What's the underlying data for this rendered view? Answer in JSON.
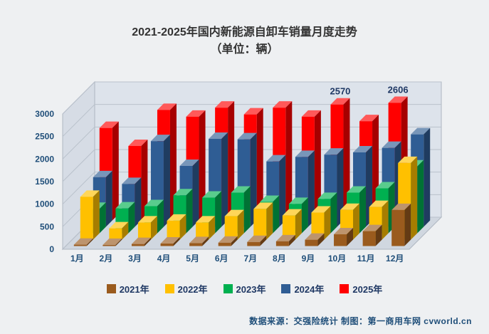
{
  "title": {
    "line1": "2021-2025年国内新能源自卸车销量月度走势",
    "line2": "（单位：辆）"
  },
  "source_note": "数据来源：交强险统计 制图：第一商用车网 cvworld.cn",
  "chart_data": {
    "type": "bar",
    "projection": "3d",
    "title": "2021-2025年国内新能源自卸车销量月度走势（单位：辆）",
    "unit": "辆",
    "categories": [
      "1月",
      "2月",
      "3月",
      "4月",
      "5月",
      "6月",
      "7月",
      "8月",
      "9月",
      "10月",
      "11月",
      "12月"
    ],
    "y_ticks": [
      0,
      500,
      1000,
      1500,
      2000,
      2500,
      3000
    ],
    "ylim": [
      0,
      3000
    ],
    "grid": true,
    "legend_position": "bottom",
    "axis_label_color": "#1F4E79",
    "series": [
      {
        "name": "2021年",
        "color": "#9A5B1E",
        "values": [
          30,
          25,
          45,
          55,
          65,
          75,
          90,
          105,
          140,
          260,
          330,
          800
        ]
      },
      {
        "name": "2022年",
        "color": "#FFC000",
        "values": [
          950,
          250,
          380,
          420,
          380,
          520,
          680,
          535,
          600,
          660,
          725,
          1700
        ]
      },
      {
        "name": "2023年",
        "color": "#00B050",
        "values": [
          540,
          550,
          600,
          840,
          790,
          900,
          695,
          650,
          760,
          900,
          995,
          1480
        ]
      },
      {
        "name": "2024年",
        "color": "#2F5D94",
        "values": [
          1100,
          950,
          1900,
          1350,
          1950,
          1940,
          1450,
          1550,
          1600,
          1650,
          1750,
          2050
        ]
      },
      {
        "name": "2025年",
        "color": "#FF0000",
        "values": [
          2050,
          1650,
          2450,
          2300,
          2500,
          2350,
          2500,
          2300,
          2570,
          2200,
          2606,
          null
        ]
      }
    ],
    "data_labels": [
      {
        "series": "2025年",
        "category": "9月",
        "value": 2570
      },
      {
        "series": "2025年",
        "category": "11月",
        "value": 2606
      }
    ]
  }
}
